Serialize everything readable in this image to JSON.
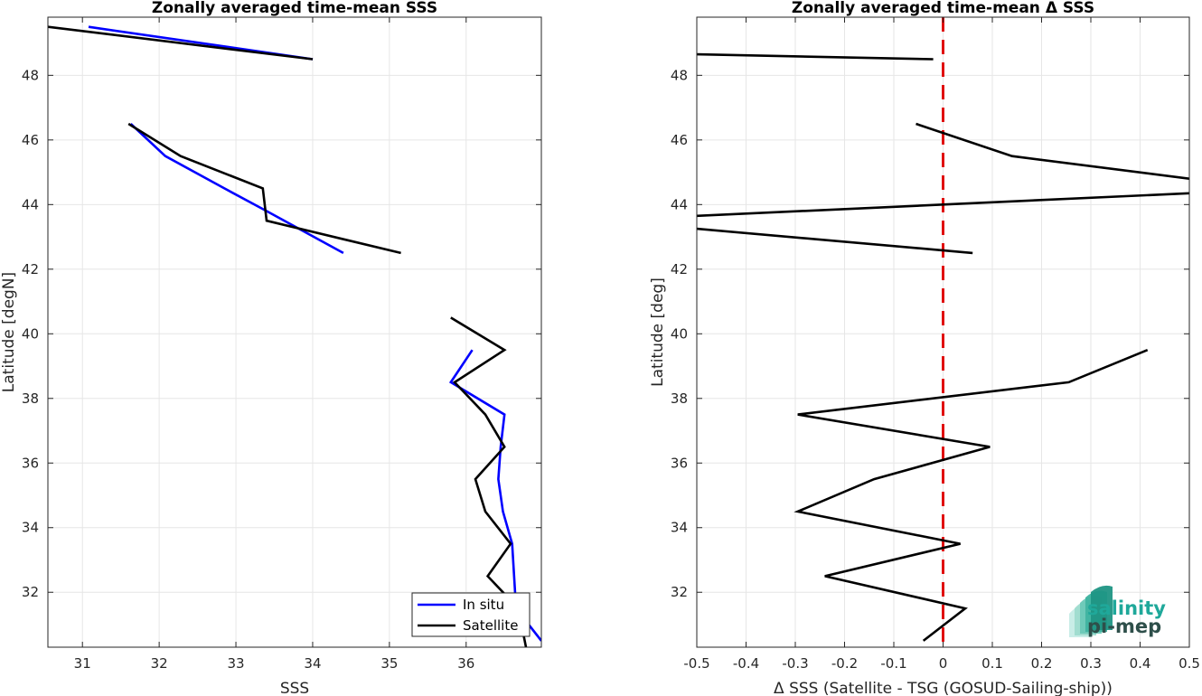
{
  "chart_data": [
    {
      "type": "line",
      "title": "Zonally averaged time-mean SSS",
      "xlabel": "SSS",
      "ylabel": "Latitude [degN]",
      "xlim": [
        30.55,
        36.98
      ],
      "ylim": [
        30.3,
        49.8
      ],
      "xticks": [
        31,
        32,
        33,
        34,
        35,
        36
      ],
      "yticks": [
        32,
        34,
        36,
        38,
        40,
        42,
        44,
        46,
        48
      ],
      "grid": true,
      "legend": "bottom-right",
      "series": [
        {
          "name": "In situ",
          "color": "#0000ff",
          "segments": [
            {
              "x": [
                31.08,
                34.0
              ],
              "y": [
                49.5,
                48.5
              ]
            },
            {
              "x": [
                31.63,
                32.08,
                32.85,
                33.4,
                34.4
              ],
              "y": [
                46.5,
                45.5,
                44.5,
                43.8,
                42.5
              ]
            },
            {
              "x": [
                36.08,
                35.8,
                36.5,
                36.45,
                36.42,
                36.48,
                36.6,
                36.65,
                36.98
              ],
              "y": [
                39.5,
                38.5,
                37.5,
                36.5,
                35.5,
                34.5,
                33.5,
                31.5,
                30.5
              ]
            }
          ]
        },
        {
          "name": "Satellite",
          "color": "#000000",
          "segments": [
            {
              "x": [
                30.55,
                34.0
              ],
              "y": [
                49.5,
                48.5
              ]
            },
            {
              "x": [
                31.6,
                32.28,
                33.35,
                33.4,
                35.15
              ],
              "y": [
                46.5,
                45.5,
                44.5,
                43.5,
                42.5
              ]
            },
            {
              "x": [
                35.8,
                36.5,
                35.85,
                36.25,
                36.5,
                36.12,
                36.25,
                36.58,
                36.28,
                36.68,
                36.78
              ],
              "y": [
                40.5,
                39.5,
                38.5,
                37.5,
                36.5,
                35.5,
                34.5,
                33.5,
                32.5,
                31.5,
                30.3
              ]
            }
          ]
        }
      ]
    },
    {
      "type": "line",
      "title": "Zonally averaged time-mean Δ SSS",
      "xlabel": "Δ SSS (Satellite - TSG (GOSUD-Sailing-ship))",
      "ylabel": "Latitude [deg]",
      "xlim": [
        -0.5,
        0.5
      ],
      "ylim": [
        30.3,
        49.8
      ],
      "xticks": [
        -0.5,
        -0.4,
        -0.3,
        -0.2,
        -0.1,
        0,
        0.1,
        0.2,
        0.3,
        0.4,
        0.5
      ],
      "xtick_labels": [
        "-0.5",
        "-0.4",
        "-0.3",
        "-0.2",
        "-0.1",
        "0",
        "0.1",
        "0.2",
        "0.3",
        "0.4",
        "0.5"
      ],
      "yticks": [
        32,
        34,
        36,
        38,
        40,
        42,
        44,
        46,
        48
      ],
      "grid": true,
      "reference_line": {
        "x": 0,
        "color": "#e01010",
        "style": "dashed"
      },
      "series": [
        {
          "color": "#000000",
          "segments": [
            {
              "x": [
                -0.5,
                -0.02
              ],
              "y": [
                48.65,
                48.5
              ]
            },
            {
              "x": [
                -0.055,
                0.14,
                0.5
              ],
              "y": [
                46.5,
                45.5,
                44.8
              ]
            },
            {
              "x": [
                0.5,
                -0.5
              ],
              "y": [
                44.35,
                43.65
              ]
            },
            {
              "x": [
                -0.5,
                0.06
              ],
              "y": [
                43.25,
                42.5
              ]
            },
            {
              "x": [
                0.415,
                0.255,
                -0.295,
                0.095,
                -0.14,
                -0.295,
                0.035,
                -0.24,
                0.045,
                -0.04
              ],
              "y": [
                39.5,
                38.5,
                37.5,
                36.5,
                35.5,
                34.5,
                33.5,
                32.5,
                31.5,
                30.5
              ]
            }
          ]
        }
      ]
    }
  ],
  "legend": {
    "entries": [
      {
        "label": "In situ",
        "color": "#0000ff"
      },
      {
        "label": "Satellite",
        "color": "#000000"
      }
    ]
  },
  "logo": {
    "line1": "salinity",
    "line2": "pi-mep"
  }
}
